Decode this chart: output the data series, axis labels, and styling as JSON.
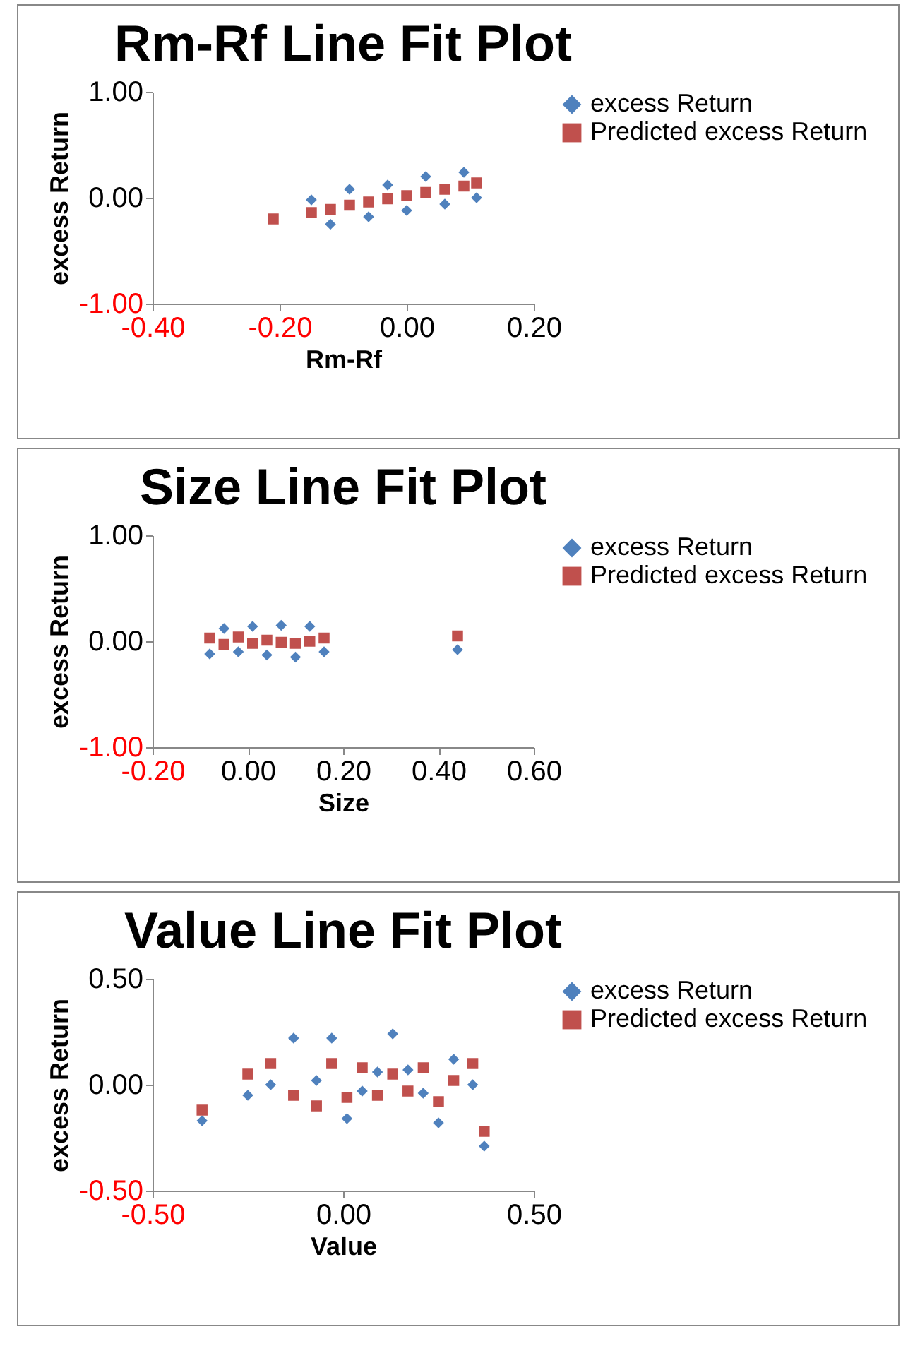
{
  "chart_data": [
    {
      "type": "scatter",
      "title": "Rm-Rf Line Fit  Plot",
      "xlabel": "Rm-Rf",
      "ylabel": "excess Return",
      "legend": "right",
      "grid": false,
      "xlim": [
        -0.4,
        0.2
      ],
      "xticks": [
        {
          "value": -0.4,
          "label": "-0.40"
        },
        {
          "value": -0.2,
          "label": "-0.20"
        },
        {
          "value": 0,
          "label": "0.00"
        },
        {
          "value": 0.2,
          "label": "0.20"
        }
      ],
      "ylim": [
        -1,
        1
      ],
      "yticks": [
        {
          "value": -1,
          "label": "-1.00"
        },
        {
          "value": 0,
          "label": "0.00"
        },
        {
          "value": 1,
          "label": "1.00"
        }
      ],
      "x": [
        -0.21,
        -0.15,
        -0.12,
        -0.09,
        -0.06,
        -0.03,
        0.0,
        0.03,
        0.06,
        0.09,
        0.11
      ],
      "series": [
        {
          "name": "excess Return",
          "color": "#4f81bd",
          "marker": "diamond",
          "values": [
            null,
            -0.02,
            -0.25,
            0.08,
            -0.18,
            0.12,
            -0.12,
            0.2,
            -0.06,
            0.24,
            0.0
          ]
        },
        {
          "name": "Predicted excess Return",
          "color": "#c0504d",
          "marker": "square",
          "values": [
            -0.2,
            -0.14,
            -0.11,
            -0.07,
            -0.04,
            -0.01,
            0.02,
            0.05,
            0.08,
            0.11,
            0.14
          ]
        }
      ]
    },
    {
      "type": "scatter",
      "title": "Size  Line Fit  Plot",
      "xlabel": "Size",
      "ylabel": "excess Return",
      "legend": "right",
      "grid": false,
      "xlim": [
        -0.2,
        0.6
      ],
      "xticks": [
        {
          "value": -0.2,
          "label": "-0.20"
        },
        {
          "value": 0,
          "label": "0.00"
        },
        {
          "value": 0.2,
          "label": "0.20"
        },
        {
          "value": 0.4,
          "label": "0.40"
        },
        {
          "value": 0.6,
          "label": "0.60"
        }
      ],
      "ylim": [
        -1,
        1
      ],
      "yticks": [
        {
          "value": -1,
          "label": "-1.00"
        },
        {
          "value": 0,
          "label": "0.00"
        },
        {
          "value": 1,
          "label": "1.00"
        }
      ],
      "x": [
        -0.08,
        -0.05,
        -0.02,
        0.01,
        0.04,
        0.07,
        0.1,
        0.13,
        0.16,
        0.44
      ],
      "series": [
        {
          "name": "excess Return",
          "color": "#4f81bd",
          "marker": "diamond",
          "values": [
            -0.12,
            0.12,
            -0.1,
            0.14,
            -0.13,
            0.15,
            -0.15,
            0.14,
            -0.1,
            -0.08
          ]
        },
        {
          "name": "Predicted excess Return",
          "color": "#c0504d",
          "marker": "square",
          "values": [
            0.03,
            -0.03,
            0.04,
            -0.02,
            0.01,
            -0.01,
            -0.02,
            0.0,
            0.03,
            0.05
          ]
        }
      ]
    },
    {
      "type": "scatter",
      "title": "Value Line Fit  Plot",
      "xlabel": "Value",
      "ylabel": "excess Return",
      "legend": "right",
      "grid": false,
      "xlim": [
        -0.5,
        0.5
      ],
      "xticks": [
        {
          "value": -0.5,
          "label": "-0.50"
        },
        {
          "value": 0,
          "label": "0.00"
        },
        {
          "value": 0.5,
          "label": "0.50"
        }
      ],
      "ylim": [
        -0.5,
        0.5
      ],
      "yticks": [
        {
          "value": -0.5,
          "label": "-0.50"
        },
        {
          "value": 0,
          "label": "0.00"
        },
        {
          "value": 0.5,
          "label": "0.50"
        }
      ],
      "x": [
        -0.37,
        -0.25,
        -0.19,
        -0.13,
        -0.07,
        -0.03,
        0.01,
        0.05,
        0.09,
        0.13,
        0.17,
        0.21,
        0.25,
        0.29,
        0.34,
        0.37
      ],
      "series": [
        {
          "name": "excess Return",
          "color": "#4f81bd",
          "marker": "diamond",
          "values": [
            -0.17,
            -0.05,
            0.0,
            0.22,
            0.02,
            0.22,
            -0.16,
            -0.03,
            0.06,
            0.24,
            0.07,
            -0.04,
            -0.18,
            0.12,
            0.0,
            -0.29
          ]
        },
        {
          "name": "Predicted excess Return",
          "color": "#c0504d",
          "marker": "square",
          "values": [
            -0.12,
            0.05,
            0.1,
            -0.05,
            -0.1,
            0.1,
            -0.06,
            0.08,
            -0.05,
            0.05,
            -0.03,
            0.08,
            -0.08,
            0.02,
            0.1,
            -0.22
          ]
        }
      ]
    }
  ]
}
